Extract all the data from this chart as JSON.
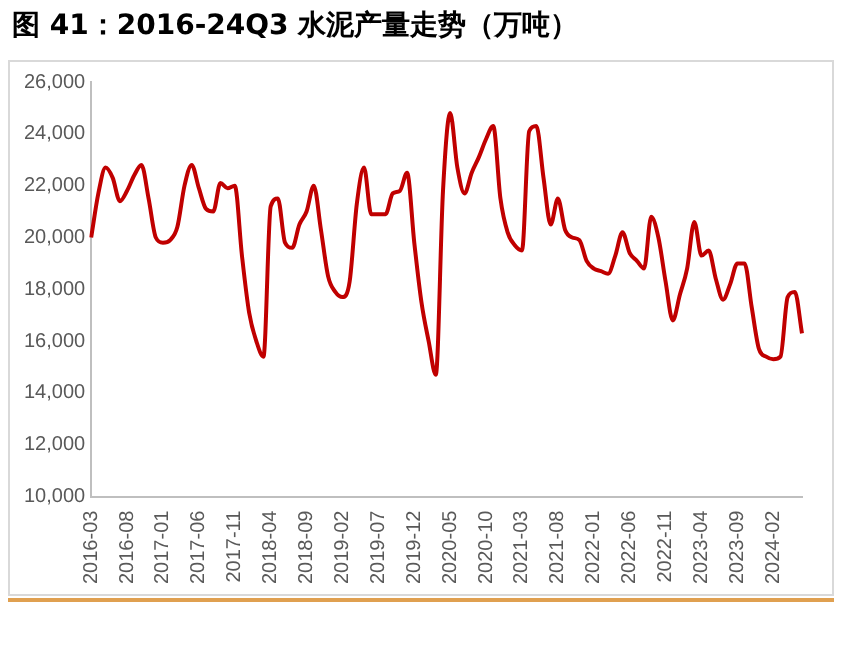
{
  "chart_data": {
    "type": "line",
    "title": "图 41：2016-24Q3 水泥产量走势（万吨）",
    "categories": [
      "2016-03",
      null,
      null,
      null,
      null,
      "2016-08",
      null,
      null,
      null,
      null,
      "2017-01",
      null,
      null,
      null,
      null,
      "2017-06",
      null,
      null,
      null,
      null,
      "2017-11",
      null,
      null,
      null,
      null,
      "2018-04",
      null,
      null,
      null,
      null,
      "2018-09",
      null,
      null,
      null,
      null,
      "2019-02",
      null,
      null,
      null,
      null,
      "2019-07",
      null,
      null,
      null,
      null,
      "2019-12",
      null,
      null,
      null,
      null,
      "2020-05",
      null,
      null,
      null,
      null,
      "2020-10",
      null,
      null,
      null,
      null,
      "2021-03",
      null,
      null,
      null,
      null,
      "2021-08",
      null,
      null,
      null,
      null,
      "2022-01",
      null,
      null,
      null,
      null,
      "2022-06",
      null,
      null,
      null,
      null,
      "2022-11",
      null,
      null,
      null,
      null,
      "2023-04",
      null,
      null,
      null,
      null,
      "2023-09",
      null,
      null,
      null,
      null,
      "2024-02",
      null,
      null,
      null,
      null
    ],
    "series": [
      {
        "color": "#c00000",
        "values": [
          20000,
          21700,
          22700,
          22300,
          21400,
          21800,
          22400,
          22800,
          21500,
          20000,
          19800,
          19900,
          20400,
          22000,
          22800,
          21900,
          21100,
          21000,
          22100,
          21900,
          22000,
          19300,
          17100,
          16000,
          15400,
          21200,
          21500,
          19800,
          19600,
          20500,
          21000,
          22000,
          20300,
          18500,
          17900,
          17700,
          18300,
          21300,
          22700,
          20900,
          20900,
          20900,
          21700,
          21800,
          22500,
          19800,
          17500,
          16000,
          14700,
          21800,
          24800,
          22700,
          21700,
          22500,
          23100,
          23800,
          24300,
          21500,
          20200,
          19700,
          19500,
          24100,
          24300,
          22300,
          20500,
          21500,
          20300,
          20000,
          19900,
          19100,
          18800,
          18700,
          18600,
          19300,
          20200,
          19400,
          19100,
          18800,
          20800,
          20000,
          18300,
          16800,
          17800,
          18800,
          20600,
          19300,
          19500,
          18400,
          17600,
          18200,
          19000,
          19000,
          17300,
          15700,
          15400,
          15300,
          15400,
          17700,
          17900,
          16300
        ]
      }
    ],
    "ylim": [
      10000,
      26000
    ],
    "yticks": [
      {
        "value": 10000,
        "label": "10,000"
      },
      {
        "value": 12000,
        "label": "12,000"
      },
      {
        "value": 14000,
        "label": "14,000"
      },
      {
        "value": 16000,
        "label": "16,000"
      },
      {
        "value": 18000,
        "label": "18,000"
      },
      {
        "value": 20000,
        "label": "20,000"
      },
      {
        "value": 22000,
        "label": "22,000"
      },
      {
        "value": 24000,
        "label": "24,000"
      },
      {
        "value": 26000,
        "label": "26,000"
      }
    ],
    "grid": false,
    "legend": false,
    "marker": "none",
    "line_style": "solid"
  }
}
